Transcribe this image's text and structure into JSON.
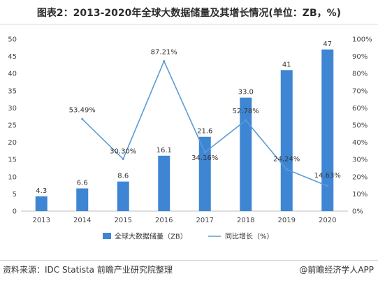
{
  "title": "图表2：2013-2020年全球大数据储量及其增长情况(单位：ZB，%)",
  "source": "资料来源：IDC Statista 前瞻产业研究院整理",
  "brand": "@前瞻经济学人APP",
  "chart_data": {
    "type": "bar+line",
    "categories": [
      "2013",
      "2014",
      "2015",
      "2016",
      "2017",
      "2018",
      "2019",
      "2020"
    ],
    "series": [
      {
        "name": "全球大数据储量（ZB）",
        "type": "bar",
        "axis": "left",
        "color": "#3e86d4",
        "values": [
          4.3,
          6.6,
          8.6,
          16.1,
          21.6,
          33.0,
          41,
          47
        ],
        "labels": [
          "4.3",
          "6.6",
          "8.6",
          "16.1",
          "21.6",
          "33.0",
          "41",
          "47"
        ]
      },
      {
        "name": "同比增长（%）",
        "type": "line",
        "axis": "right",
        "color": "#5b9bd5",
        "values": [
          null,
          53.49,
          30.3,
          87.21,
          34.16,
          52.78,
          24.24,
          14.63
        ],
        "labels": [
          "",
          "53.49%",
          "30.30%",
          "87.21%",
          "34.16%",
          "52.78%",
          "24.24%",
          "14.63%"
        ]
      }
    ],
    "y_left": {
      "min": 0,
      "max": 50,
      "ticks": [
        "0",
        "5",
        "10",
        "15",
        "20",
        "25",
        "30",
        "35",
        "40",
        "45",
        "50"
      ]
    },
    "y_right": {
      "min": 0,
      "max": 100,
      "ticks": [
        "0%",
        "10%",
        "20%",
        "30%",
        "40%",
        "50%",
        "60%",
        "70%",
        "80%",
        "90%",
        "100%"
      ]
    },
    "grid": false,
    "legend_position": "bottom"
  }
}
